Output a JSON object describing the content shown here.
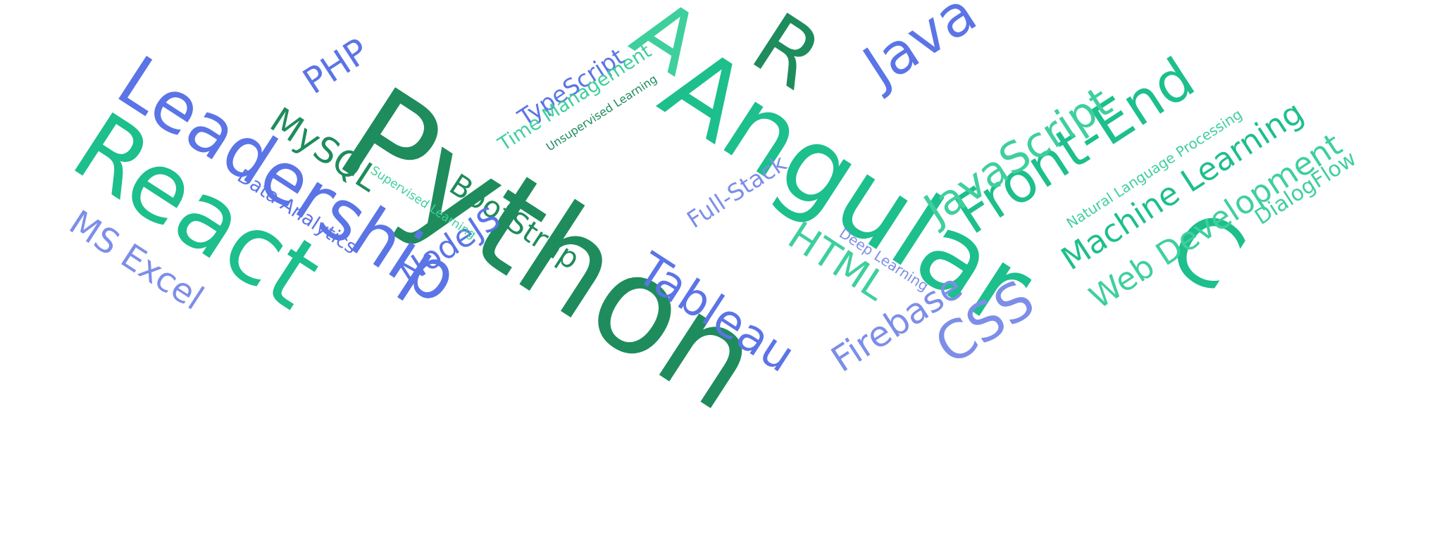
{
  "colors": {
    "dark_green": "#1e8c5c",
    "teal": "#1dbf8c",
    "mint": "#3fcf9d",
    "blue": "#5b74e6",
    "periwinkle": "#7d8ee8"
  },
  "words": [
    {
      "text": "Python",
      "weight": 1.0,
      "color": "dark_green"
    },
    {
      "text": "Angular",
      "weight": 0.85,
      "color": "teal"
    },
    {
      "text": "React",
      "weight": 0.8,
      "color": "teal"
    },
    {
      "text": "Leadership",
      "weight": 0.7,
      "color": "blue"
    },
    {
      "text": "R",
      "weight": 0.75,
      "color": "dark_green"
    },
    {
      "text": "A",
      "weight": 0.75,
      "color": "mint"
    },
    {
      "text": "C",
      "weight": 0.75,
      "color": "teal"
    },
    {
      "text": "Java",
      "weight": 0.5,
      "color": "blue"
    },
    {
      "text": "Front-End",
      "weight": 0.5,
      "color": "teal"
    },
    {
      "text": "JavaScript",
      "weight": 0.4,
      "color": "mint"
    },
    {
      "text": "Machine Learning",
      "weight": 0.35,
      "color": "teal"
    },
    {
      "text": "Web Development",
      "weight": 0.35,
      "color": "mint"
    },
    {
      "text": "Tableau",
      "weight": 0.45,
      "color": "blue"
    },
    {
      "text": "CSS",
      "weight": 0.45,
      "color": "periwinkle"
    },
    {
      "text": "HTML",
      "weight": 0.35,
      "color": "mint"
    },
    {
      "text": "Firebase",
      "weight": 0.35,
      "color": "periwinkle"
    },
    {
      "text": "BootStrap",
      "weight": 0.3,
      "color": "dark_green"
    },
    {
      "text": "MySQL",
      "weight": 0.32,
      "color": "dark_green"
    },
    {
      "text": "PHP",
      "weight": 0.32,
      "color": "blue"
    },
    {
      "text": "MS Excel",
      "weight": 0.3,
      "color": "periwinkle"
    },
    {
      "text": "NodeJS",
      "weight": 0.28,
      "color": "blue"
    },
    {
      "text": "TypeScript",
      "weight": 0.22,
      "color": "blue"
    },
    {
      "text": "Full-Stack",
      "weight": 0.22,
      "color": "periwinkle"
    },
    {
      "text": "Data Analytics",
      "weight": 0.18,
      "color": "blue"
    },
    {
      "text": "Time Management",
      "weight": 0.18,
      "color": "mint"
    },
    {
      "text": "DialogFlow",
      "weight": 0.2,
      "color": "mint"
    },
    {
      "text": "Natural Language Processing",
      "weight": 0.13,
      "color": "mint"
    },
    {
      "text": "Deep Learning",
      "weight": 0.13,
      "color": "periwinkle"
    },
    {
      "text": "Supervised Learning",
      "weight": 0.11,
      "color": "mint"
    },
    {
      "text": "Unsupervised Learning",
      "weight": 0.1,
      "color": "dark_green"
    }
  ]
}
